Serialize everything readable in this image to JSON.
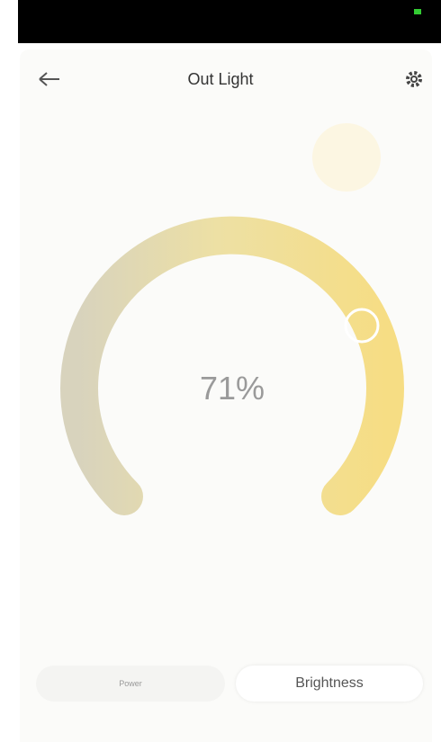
{
  "header": {
    "title": "Out Light"
  },
  "dial": {
    "label": "71%"
  },
  "tabs": [
    "Power",
    "Brightness"
  ]
}
